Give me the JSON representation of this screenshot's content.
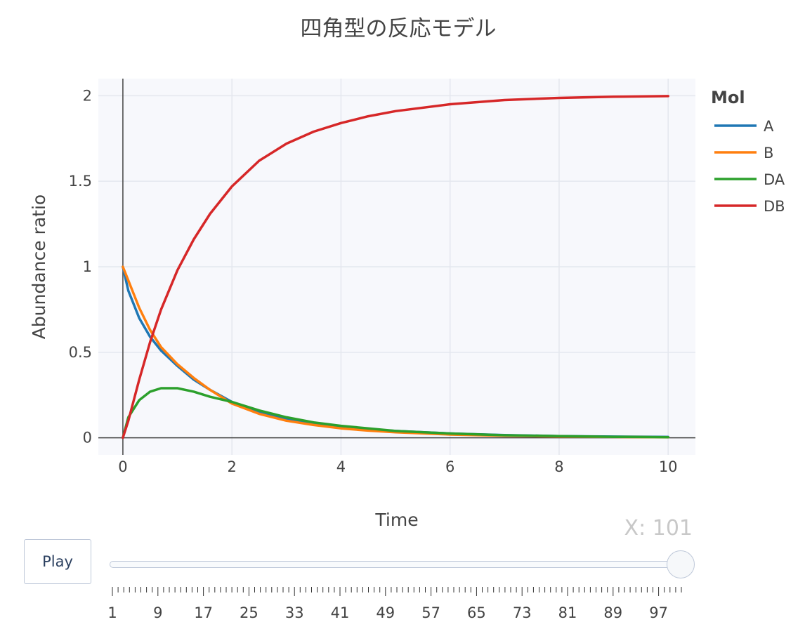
{
  "chart_data": {
    "type": "line",
    "title": "四角型の反応モデル",
    "xlabel": "Time",
    "ylabel": "Abundance ratio",
    "xlim": [
      -0.45,
      10.5
    ],
    "ylim": [
      -0.1,
      2.1
    ],
    "x_ticks": [
      0,
      2,
      4,
      6,
      8,
      10
    ],
    "x_tick_labels": [
      "0",
      "2",
      "4",
      "6",
      "8",
      "10"
    ],
    "y_ticks": [
      0,
      0.5,
      1,
      1.5,
      2
    ],
    "y_tick_labels": [
      "0",
      "0.5",
      "1",
      "1.5",
      "2"
    ],
    "grid": true,
    "legend": {
      "title": "Mol",
      "placement": "top-right-outside"
    },
    "x": [
      0,
      0.1,
      0.3,
      0.5,
      0.7,
      1.0,
      1.3,
      1.6,
      2.0,
      2.5,
      3.0,
      3.5,
      4.0,
      4.5,
      5.0,
      6.0,
      7.0,
      8.0,
      9.0,
      10.0
    ],
    "series": [
      {
        "name": "A",
        "color": "#1f77b4",
        "values": [
          1.0,
          0.86,
          0.7,
          0.59,
          0.51,
          0.42,
          0.34,
          0.28,
          0.21,
          0.15,
          0.11,
          0.085,
          0.065,
          0.05,
          0.04,
          0.025,
          0.016,
          0.01,
          0.007,
          0.005
        ]
      },
      {
        "name": "B",
        "color": "#ff7f0e",
        "values": [
          1.0,
          0.92,
          0.76,
          0.63,
          0.53,
          0.43,
          0.35,
          0.28,
          0.2,
          0.14,
          0.1,
          0.075,
          0.055,
          0.042,
          0.032,
          0.019,
          0.012,
          0.008,
          0.005,
          0.003
        ]
      },
      {
        "name": "DA",
        "color": "#2ca02c",
        "values": [
          0.0,
          0.12,
          0.22,
          0.27,
          0.29,
          0.29,
          0.27,
          0.24,
          0.21,
          0.16,
          0.12,
          0.09,
          0.07,
          0.055,
          0.04,
          0.025,
          0.015,
          0.01,
          0.006,
          0.004
        ]
      },
      {
        "name": "DB",
        "color": "#d62728",
        "values": [
          0.0,
          0.1,
          0.34,
          0.56,
          0.75,
          0.98,
          1.16,
          1.31,
          1.47,
          1.62,
          1.72,
          1.79,
          1.84,
          1.88,
          1.91,
          1.95,
          1.975,
          1.987,
          1.994,
          1.998
        ]
      }
    ]
  },
  "controls": {
    "play_label": "Play",
    "slider_current": "X: 101",
    "slider_min": 1,
    "slider_max": 101,
    "slider_value": 101,
    "slider_labels": [
      "1",
      "9",
      "17",
      "25",
      "33",
      "41",
      "49",
      "57",
      "65",
      "73",
      "81",
      "89",
      "97"
    ]
  }
}
